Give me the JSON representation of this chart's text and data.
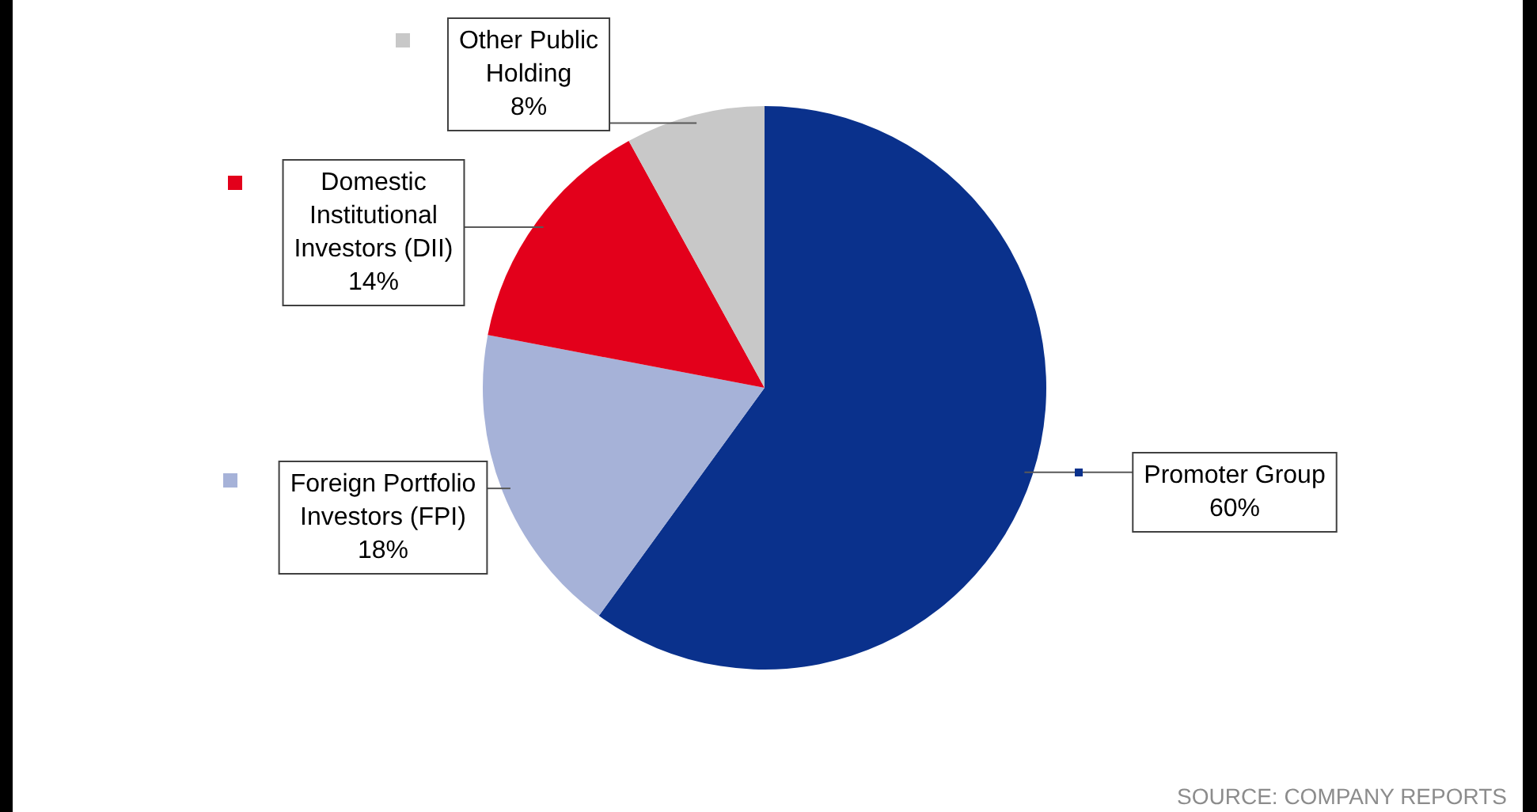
{
  "chart_data": {
    "type": "pie",
    "categories": [
      "Promoter Group",
      "Foreign Portfolio Investors (FPI)",
      "Domestic Institutional Investors (DII)",
      "Other Public Holding"
    ],
    "values": [
      60,
      18,
      14,
      8
    ],
    "value_labels": [
      "60%",
      "18%",
      "14%",
      "8%"
    ],
    "colors": [
      "#0a318c",
      "#a6b2d8",
      "#e3001b",
      "#c8c8c8"
    ],
    "legend": "left",
    "annotations": [
      "SOURCE: COMPANY REPORTS"
    ]
  }
}
